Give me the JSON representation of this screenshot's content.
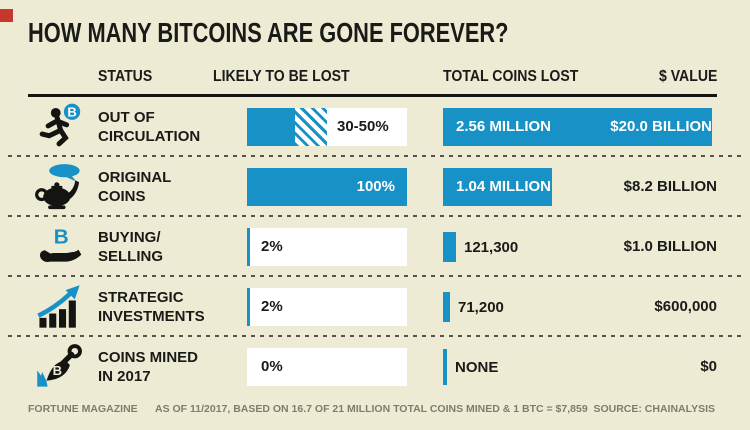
{
  "theme": {
    "background": "#EDEBD3",
    "accent_blue": "#1791C6",
    "ink": "#1A1A18",
    "footer_gray": "#7E7D6C",
    "red_mark": "#C8372D",
    "bar_white": "#FFFFFF"
  },
  "title": "HOW MANY BITCOINS ARE GONE FOREVER?",
  "header": {
    "status": "STATUS",
    "likely": "LIKELY TO BE LOST",
    "total": "TOTAL COINS LOST",
    "value": "$ VALUE"
  },
  "rows": [
    {
      "icon": "runner-bitcoin-icon",
      "status": "OUT OF\nCIRCULATION",
      "bar_label": "30-50%",
      "total": "2.56 MILLION",
      "value": "$20.0 BILLION"
    },
    {
      "icon": "genie-lamp-icon",
      "status": "ORIGINAL\nCOINS",
      "bar_label": "100%",
      "total": "1.04 MILLION",
      "value": "$8.2 BILLION"
    },
    {
      "icon": "hand-bitcoin-icon",
      "status": "BUYING/\nSELLING",
      "bar_label": "2%",
      "total": "121,300",
      "value": "$1.0 BILLION"
    },
    {
      "icon": "growth-chart-icon",
      "status": "STRATEGIC\nINVESTMENTS",
      "bar_label": "2%",
      "total": "71,200",
      "value": "$600,000"
    },
    {
      "icon": "shovel-bitcoin-icon",
      "status": "COINS MINED\nIN 2017",
      "bar_label": "0%",
      "total": "NONE",
      "value": "$0"
    }
  ],
  "footer": {
    "left": "FORTUNE MAGAZINE",
    "middle": "AS OF 11/2017, BASED ON 16.7 OF 21 MILLION TOTAL COINS MINED & 1 BTC = $7,859",
    "right": "SOURCE: CHAINALYSIS"
  },
  "chart_data": {
    "type": "table",
    "title": "How Many Bitcoins Are Gone Forever?",
    "columns": [
      "STATUS",
      "LIKELY TO BE LOST",
      "TOTAL COINS LOST",
      "$ VALUE"
    ],
    "rows": [
      {
        "status": "Out of Circulation",
        "likely_lost_pct_min": 30,
        "likely_lost_pct_max": 50,
        "total_coins_lost": 2560000,
        "usd_value": 20000000000
      },
      {
        "status": "Original Coins",
        "likely_lost_pct_min": 100,
        "likely_lost_pct_max": 100,
        "total_coins_lost": 1040000,
        "usd_value": 8200000000
      },
      {
        "status": "Buying/Selling",
        "likely_lost_pct_min": 2,
        "likely_lost_pct_max": 2,
        "total_coins_lost": 121300,
        "usd_value": 1000000000
      },
      {
        "status": "Strategic Investments",
        "likely_lost_pct_min": 2,
        "likely_lost_pct_max": 2,
        "total_coins_lost": 71200,
        "usd_value": 600000
      },
      {
        "status": "Coins Mined in 2017",
        "likely_lost_pct_min": 0,
        "likely_lost_pct_max": 0,
        "total_coins_lost": 0,
        "usd_value": 0
      }
    ],
    "note": "As of 11/2017, based on 16.7 of 21 million total coins mined & 1 BTC = $7,859",
    "source": "Chainalysis",
    "legend_position": "none",
    "grid": false
  }
}
